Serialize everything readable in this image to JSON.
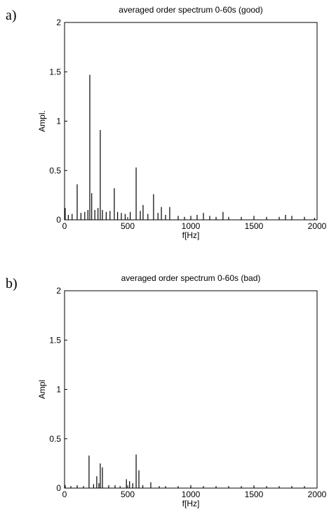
{
  "chart_data": [
    {
      "type": "stem",
      "panel_label": "a)",
      "title": "averaged order spectrum 0-60s (good)",
      "x_label": "f[Hz]",
      "y_label": "Ampl.",
      "color": "#000000",
      "x": [
        5,
        30,
        60,
        100,
        130,
        160,
        185,
        200,
        215,
        240,
        265,
        283,
        300,
        330,
        360,
        394,
        420,
        450,
        480,
        520,
        567,
        600,
        622,
        660,
        705,
        740,
        767,
        800,
        833,
        900,
        950,
        1000,
        1050,
        1100,
        1150,
        1200,
        1255,
        1300,
        1400,
        1500,
        1600,
        1700,
        1750,
        1800,
        1900,
        1980
      ],
      "values": [
        0.12,
        0.05,
        0.06,
        0.36,
        0.07,
        0.08,
        0.1,
        1.47,
        0.27,
        0.1,
        0.12,
        0.91,
        0.1,
        0.08,
        0.09,
        0.32,
        0.08,
        0.07,
        0.06,
        0.08,
        0.53,
        0.09,
        0.15,
        0.06,
        0.26,
        0.07,
        0.13,
        0.05,
        0.13,
        0.04,
        0.03,
        0.04,
        0.05,
        0.07,
        0.04,
        0.03,
        0.08,
        0.03,
        0.03,
        0.04,
        0.03,
        0.03,
        0.05,
        0.04,
        0.03,
        0.02
      ],
      "xlim": [
        0,
        2000
      ],
      "xticks": [
        0,
        500,
        1000,
        1500,
        2000
      ],
      "ylim": [
        0,
        2
      ],
      "yticks": [
        0,
        0.5,
        1,
        1.5,
        2
      ]
    },
    {
      "type": "stem",
      "panel_label": "b)",
      "title": "averaged order spectrum 0-60s (bad)",
      "x_label": "f[Hz]",
      "y_label": "Ampl",
      "color": "#000000",
      "x": [
        5,
        50,
        100,
        150,
        194,
        230,
        255,
        272,
        283,
        300,
        350,
        400,
        440,
        490,
        515,
        540,
        567,
        589,
        620,
        683,
        750,
        800,
        900,
        1000,
        1100,
        1200,
        1300,
        1400,
        1500,
        1600,
        1700,
        1800,
        1900
      ],
      "values": [
        0.03,
        0.02,
        0.03,
        0.02,
        0.33,
        0.04,
        0.12,
        0.05,
        0.25,
        0.21,
        0.03,
        0.03,
        0.02,
        0.09,
        0.07,
        0.05,
        0.34,
        0.18,
        0.03,
        0.06,
        0.02,
        0.02,
        0.02,
        0.03,
        0.02,
        0.02,
        0.02,
        0.02,
        0.02,
        0.02,
        0.02,
        0.02,
        0.02
      ],
      "xlim": [
        0,
        2000
      ],
      "xticks": [
        0,
        500,
        1000,
        1500,
        2000
      ],
      "ylim": [
        0,
        2
      ],
      "yticks": [
        0,
        0.5,
        1,
        1.5,
        2
      ]
    }
  ]
}
